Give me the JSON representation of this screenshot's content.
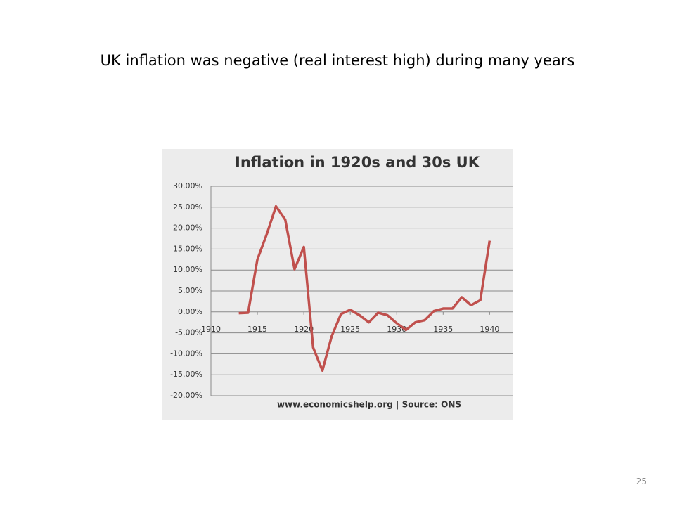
{
  "slide_title": "UK inflation was negative (real interest high) during many years",
  "page_number": "25",
  "chart_data": {
    "type": "line",
    "title": "Inflation in 1920s and 30s UK",
    "source": "www.economicshelp.org | Source: ONS",
    "x": [
      1913,
      1914,
      1915,
      1916,
      1917,
      1918,
      1919,
      1920,
      1921,
      1922,
      1923,
      1924,
      1925,
      1926,
      1927,
      1928,
      1929,
      1930,
      1931,
      1932,
      1933,
      1934,
      1935,
      1936,
      1937,
      1938,
      1939,
      1940
    ],
    "values": [
      -0.3,
      -0.2,
      12.5,
      18.5,
      25.2,
      22.0,
      10.2,
      15.5,
      -8.5,
      -14.0,
      -5.8,
      -0.5,
      0.5,
      -0.8,
      -2.5,
      -0.2,
      -0.8,
      -2.7,
      -4.3,
      -2.5,
      -2.0,
      0.2,
      0.8,
      0.8,
      3.5,
      1.6,
      2.8,
      17.0
    ],
    "color": "#c0504d",
    "xlim": [
      1910,
      1943
    ],
    "xticks": [
      1910,
      1915,
      1920,
      1925,
      1930,
      1935,
      1940
    ],
    "ylim": [
      -20,
      30
    ],
    "yticks": [
      {
        "value": 30,
        "label": "30.00%"
      },
      {
        "value": 25,
        "label": "25.00%"
      },
      {
        "value": 20,
        "label": "20.00%"
      },
      {
        "value": 15,
        "label": "15.00%"
      },
      {
        "value": 10,
        "label": "10.00%"
      },
      {
        "value": 5,
        "label": "5.00%"
      },
      {
        "value": 0,
        "label": "0.00%"
      },
      {
        "value": -5,
        "label": "-5.00%"
      },
      {
        "value": -10,
        "label": "-10.00%"
      },
      {
        "value": -15,
        "label": "-15.00%"
      },
      {
        "value": -20,
        "label": "-20.00%"
      }
    ],
    "grid": true
  }
}
